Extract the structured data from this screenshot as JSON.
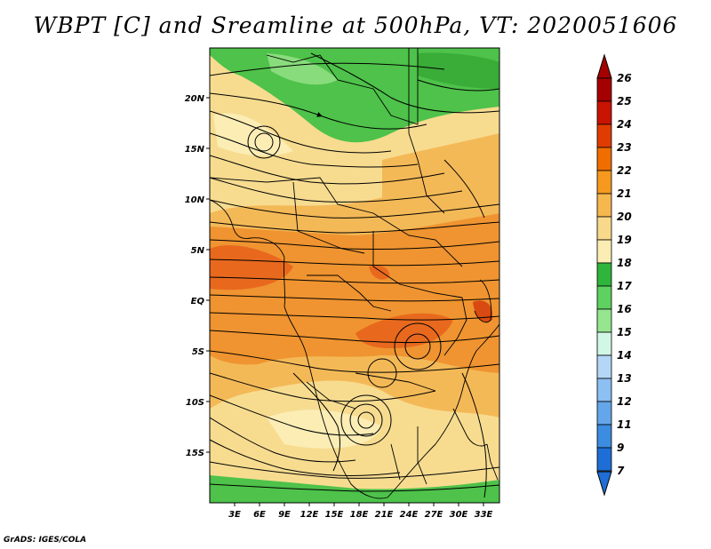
{
  "title": "WBPT [C] and Sreamline at 500hPa, VT: 2020051606",
  "credit": "GrADS: IGES/COLA",
  "lat_labels": [
    "20N",
    "15N",
    "10N",
    "5N",
    "EQ",
    "5S",
    "10S",
    "15S"
  ],
  "lon_labels": [
    "3E",
    "6E",
    "9E",
    "12E",
    "15E",
    "18E",
    "21E",
    "24E",
    "27E",
    "30E",
    "33E"
  ],
  "colorbar": {
    "labels": [
      "26",
      "25",
      "24",
      "23",
      "22",
      "21",
      "20",
      "19",
      "18",
      "17",
      "16",
      "15",
      "14",
      "13",
      "12",
      "11",
      "9",
      "7"
    ],
    "colors": [
      "#a50000",
      "#c81400",
      "#e03c00",
      "#f06e00",
      "#f59a1e",
      "#f6b84e",
      "#f8d88a",
      "#fbedb4",
      "#2fb43c",
      "#5ed160",
      "#96e690",
      "#d2f7e6",
      "#b4d7f8",
      "#8cbff2",
      "#64a6ea",
      "#3c8ce0",
      "#1e6ed6"
    ]
  },
  "map_colors": {
    "warm_pale": "#f7dc90",
    "warm_mid": "#f4b957",
    "warm_orange": "#ef9430",
    "hot": "#e8691e",
    "green": "#4ec24a",
    "green_light": "#88dc7c"
  }
}
